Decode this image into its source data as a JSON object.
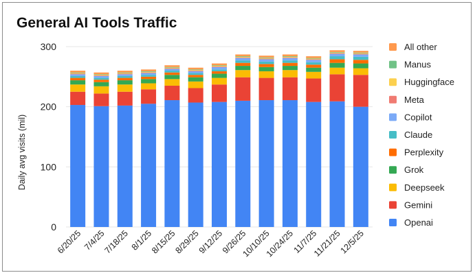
{
  "chart_data": {
    "type": "bar",
    "stacked": true,
    "title": "General AI Tools Traffic",
    "xlabel": "",
    "ylabel": "Daily avg visits (mil)",
    "ylim": [
      0,
      300
    ],
    "yticks": [
      0,
      100,
      200,
      300
    ],
    "legend_position": "right",
    "categories": [
      "6/20/25",
      "7/4/25",
      "7/18/25",
      "8/1/25",
      "8/15/25",
      "8/29/25",
      "9/12/25",
      "9/26/25",
      "10/10/25",
      "10/24/25",
      "11/7/25",
      "11/21/25",
      "12/5/25"
    ],
    "series": [
      {
        "name": "Openai",
        "color": "#4285f4",
        "values": [
          203,
          201,
          202,
          205,
          211,
          207,
          208,
          210,
          211,
          211,
          208,
          209,
          200
        ]
      },
      {
        "name": "Gemini",
        "color": "#ea4335",
        "values": [
          22,
          21,
          23,
          24,
          24,
          24,
          29,
          39,
          37,
          38,
          39,
          45,
          53
        ]
      },
      {
        "name": "Deepseek",
        "color": "#fbbc04",
        "values": [
          12,
          12,
          12,
          10,
          11,
          11,
          11,
          12,
          11,
          12,
          11,
          11,
          11
        ]
      },
      {
        "name": "Grok",
        "color": "#34a853",
        "values": [
          7,
          7,
          7,
          7,
          7,
          7,
          7,
          7,
          7,
          7,
          7,
          8,
          8
        ]
      },
      {
        "name": "Perplexity",
        "color": "#ff6d01",
        "values": [
          4,
          4,
          4,
          4,
          4,
          4,
          4,
          5,
          5,
          5,
          5,
          6,
          6
        ]
      },
      {
        "name": "Claude",
        "color": "#46bdc6",
        "values": [
          3,
          3,
          3,
          3,
          3,
          3,
          3,
          4,
          4,
          4,
          4,
          5,
          5
        ]
      },
      {
        "name": "Copilot",
        "color": "#7baaf7",
        "values": [
          3,
          3,
          3,
          3,
          3,
          3,
          4,
          4,
          4,
          4,
          4,
          4,
          4
        ]
      },
      {
        "name": "Meta",
        "color": "#f07b72",
        "values": [
          1,
          1,
          1,
          1,
          1,
          1,
          1,
          1,
          1,
          1,
          1,
          1,
          1
        ]
      },
      {
        "name": "Huggingface",
        "color": "#fcd04f",
        "values": [
          1,
          1,
          1,
          1,
          1,
          1,
          1,
          1,
          1,
          1,
          1,
          1,
          1
        ]
      },
      {
        "name": "Manus",
        "color": "#71c287",
        "values": [
          1,
          1,
          1,
          1,
          1,
          1,
          1,
          1,
          1,
          1,
          1,
          1,
          1
        ]
      },
      {
        "name": "All other",
        "color": "#ff994d",
        "values": [
          3,
          3,
          3,
          3,
          3,
          3,
          3,
          3,
          3,
          3,
          3,
          3,
          3
        ]
      }
    ]
  }
}
